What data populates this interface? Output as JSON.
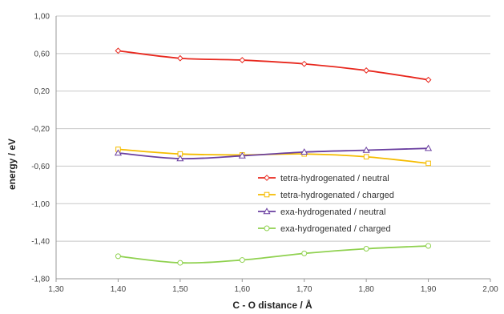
{
  "chart_data": {
    "type": "line",
    "xlabel": "C - O distance / Å",
    "ylabel": "energy / eV",
    "xlim": [
      1.3,
      2.0
    ],
    "ylim": [
      -1.8,
      1.0
    ],
    "x_ticks": [
      "1,30",
      "1,40",
      "1,50",
      "1,60",
      "1,70",
      "1,80",
      "1,90",
      "2,00"
    ],
    "y_ticks": [
      "1,00",
      "0,60",
      "0,20",
      "-0,20",
      "-0,60",
      "-1,00",
      "-1,40",
      "-1,80"
    ],
    "grid": "horizontal",
    "legend_position": "lower-center",
    "x": [
      1.4,
      1.5,
      1.6,
      1.7,
      1.8,
      1.9
    ],
    "series": [
      {
        "name": "tetra-hydrogenated / neutral",
        "color": "#e8281e",
        "marker": "diamond",
        "values": [
          0.63,
          0.55,
          0.53,
          0.49,
          0.42,
          0.32
        ]
      },
      {
        "name": "tetra-hydrogenated / charged",
        "color": "#f5bc00",
        "marker": "square",
        "values": [
          -0.42,
          -0.47,
          -0.48,
          -0.47,
          -0.5,
          -0.57
        ]
      },
      {
        "name": "exa-hydrogenated / neutral",
        "color": "#6a3fa0",
        "marker": "triangle",
        "values": [
          -0.46,
          -0.52,
          -0.49,
          -0.45,
          -0.43,
          -0.41
        ]
      },
      {
        "name": "exa-hydrogenated / charged",
        "color": "#8fd14f",
        "marker": "circle",
        "values": [
          -1.56,
          -1.63,
          -1.6,
          -1.53,
          -1.48,
          -1.45
        ]
      }
    ]
  }
}
